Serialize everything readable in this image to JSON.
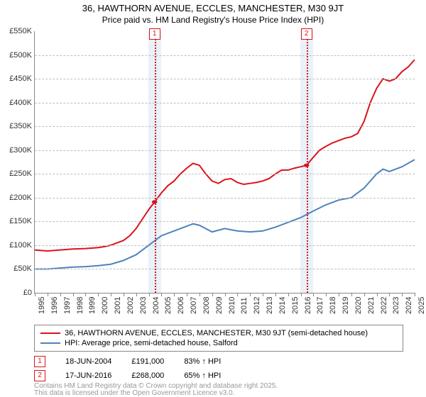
{
  "title": {
    "line1": "36, HAWTHORN AVENUE, ECCLES, MANCHESTER, M30 9JT",
    "line2": "Price paid vs. HM Land Registry's House Price Index (HPI)"
  },
  "chart": {
    "type": "line",
    "x_axis": {
      "min_year": 1995,
      "max_year": 2025,
      "tick_step": 1,
      "label_fontsize": 11
    },
    "y_axis": {
      "min": 0,
      "max": 550000,
      "tick_step": 50000,
      "tick_prefix": "£",
      "tick_suffix": "K",
      "label_fontsize": 11
    },
    "background_color": "#ffffff",
    "grid_color": "#c0c0c0",
    "plot_border_color": "#888888",
    "sale_band_color": "#dbe7f5",
    "series": [
      {
        "name": "36, HAWTHORN AVENUE, ECCLES, MANCHESTER, M30 9JT (semi-detached house)",
        "color": "#d9141a",
        "line_width": 2,
        "data": [
          [
            1995.0,
            90000
          ],
          [
            1996.0,
            88000
          ],
          [
            1997.0,
            90000
          ],
          [
            1998.0,
            92000
          ],
          [
            1999.0,
            93000
          ],
          [
            2000.0,
            95000
          ],
          [
            2000.5,
            97000
          ],
          [
            2001.0,
            100000
          ],
          [
            2001.5,
            105000
          ],
          [
            2002.0,
            110000
          ],
          [
            2002.5,
            120000
          ],
          [
            2003.0,
            135000
          ],
          [
            2003.5,
            155000
          ],
          [
            2004.0,
            175000
          ],
          [
            2004.46,
            191000
          ],
          [
            2005.0,
            210000
          ],
          [
            2005.5,
            225000
          ],
          [
            2006.0,
            235000
          ],
          [
            2006.5,
            250000
          ],
          [
            2007.0,
            262000
          ],
          [
            2007.5,
            272000
          ],
          [
            2008.0,
            268000
          ],
          [
            2008.5,
            250000
          ],
          [
            2009.0,
            235000
          ],
          [
            2009.5,
            230000
          ],
          [
            2010.0,
            238000
          ],
          [
            2010.5,
            240000
          ],
          [
            2011.0,
            232000
          ],
          [
            2011.5,
            228000
          ],
          [
            2012.0,
            230000
          ],
          [
            2012.5,
            232000
          ],
          [
            2013.0,
            235000
          ],
          [
            2013.5,
            240000
          ],
          [
            2014.0,
            250000
          ],
          [
            2014.5,
            258000
          ],
          [
            2015.0,
            258000
          ],
          [
            2015.5,
            262000
          ],
          [
            2016.0,
            265000
          ],
          [
            2016.46,
            268000
          ],
          [
            2017.0,
            285000
          ],
          [
            2017.5,
            300000
          ],
          [
            2018.0,
            308000
          ],
          [
            2018.5,
            315000
          ],
          [
            2019.0,
            320000
          ],
          [
            2019.5,
            325000
          ],
          [
            2020.0,
            328000
          ],
          [
            2020.5,
            335000
          ],
          [
            2021.0,
            360000
          ],
          [
            2021.5,
            400000
          ],
          [
            2022.0,
            430000
          ],
          [
            2022.5,
            450000
          ],
          [
            2023.0,
            445000
          ],
          [
            2023.5,
            450000
          ],
          [
            2024.0,
            465000
          ],
          [
            2024.5,
            475000
          ],
          [
            2025.0,
            490000
          ]
        ]
      },
      {
        "name": "HPI: Average price, semi-detached house, Salford",
        "color": "#4f83bd",
        "line_width": 2,
        "data": [
          [
            1995.0,
            50000
          ],
          [
            1996.0,
            50000
          ],
          [
            1997.0,
            52000
          ],
          [
            1998.0,
            54000
          ],
          [
            1999.0,
            55000
          ],
          [
            2000.0,
            57000
          ],
          [
            2001.0,
            60000
          ],
          [
            2002.0,
            68000
          ],
          [
            2003.0,
            80000
          ],
          [
            2004.0,
            100000
          ],
          [
            2005.0,
            120000
          ],
          [
            2006.0,
            130000
          ],
          [
            2007.0,
            140000
          ],
          [
            2007.5,
            145000
          ],
          [
            2008.0,
            142000
          ],
          [
            2009.0,
            128000
          ],
          [
            2010.0,
            135000
          ],
          [
            2011.0,
            130000
          ],
          [
            2012.0,
            128000
          ],
          [
            2013.0,
            130000
          ],
          [
            2014.0,
            138000
          ],
          [
            2015.0,
            148000
          ],
          [
            2016.0,
            158000
          ],
          [
            2017.0,
            172000
          ],
          [
            2018.0,
            185000
          ],
          [
            2019.0,
            195000
          ],
          [
            2020.0,
            200000
          ],
          [
            2021.0,
            220000
          ],
          [
            2022.0,
            250000
          ],
          [
            2022.5,
            260000
          ],
          [
            2023.0,
            255000
          ],
          [
            2024.0,
            265000
          ],
          [
            2025.0,
            280000
          ]
        ]
      }
    ],
    "sale_markers": [
      {
        "num": "1",
        "year": 2004.46,
        "price": 191000,
        "date_label": "18-JUN-2004",
        "price_label": "£191,000",
        "hpi_delta_label": "83% ↑ HPI",
        "color": "#d9141a"
      },
      {
        "num": "2",
        "year": 2016.46,
        "price": 268000,
        "date_label": "17-JUN-2016",
        "price_label": "£268,000",
        "hpi_delta_label": "65% ↑ HPI",
        "color": "#d9141a"
      }
    ]
  },
  "legend": {
    "border_color": "#888888",
    "fontsize": 11
  },
  "attribution": {
    "line1": "Contains HM Land Registry data © Crown copyright and database right 2025.",
    "line2": "This data is licensed under the Open Government Licence v3.0.",
    "color": "#999999",
    "fontsize": 10
  }
}
